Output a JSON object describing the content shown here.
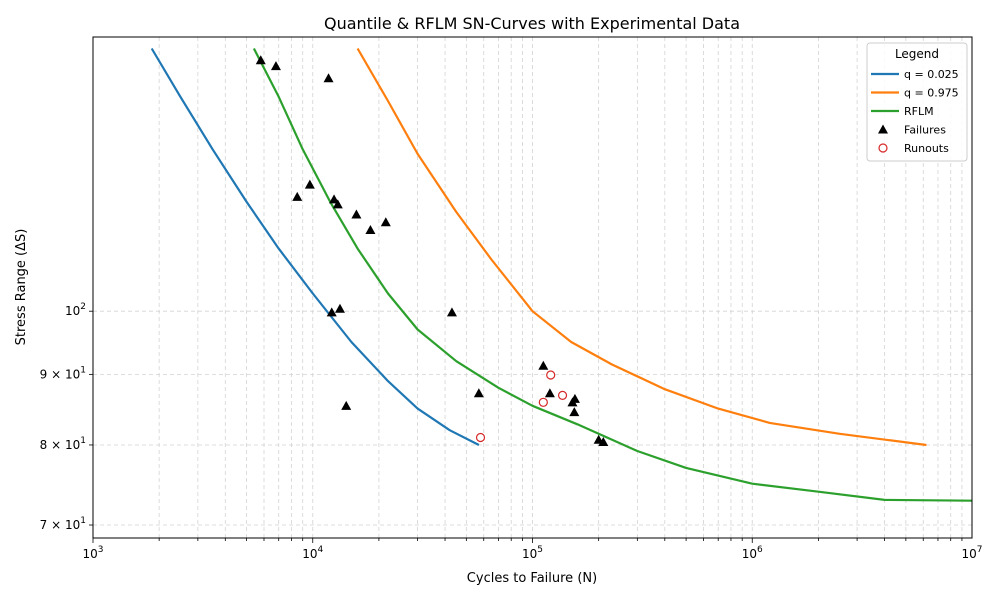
{
  "chart_data": {
    "type": "scatter",
    "title": "Quantile & RFLM SN-Curves with Experimental Data",
    "xlabel": "Cycles to Failure (N)",
    "ylabel": "Stress Range (ΔS)",
    "xscale": "log",
    "yscale": "log",
    "xlim": [
      1000,
      10000000
    ],
    "ylim": [
      68.5,
      158
    ],
    "grid": true,
    "legend_title": "Legend",
    "legend_position": "top-right",
    "x_ticks": [
      {
        "value": 1000,
        "base": "10",
        "exp": "3"
      },
      {
        "value": 10000,
        "base": "10",
        "exp": "4"
      },
      {
        "value": 100000,
        "base": "10",
        "exp": "5"
      },
      {
        "value": 1000000,
        "base": "10",
        "exp": "6"
      },
      {
        "value": 10000000,
        "base": "10",
        "exp": "7"
      }
    ],
    "y_ticks": [
      {
        "value": 70,
        "mant": "7 × 10",
        "exp": "1"
      },
      {
        "value": 80,
        "mant": "8 × 10",
        "exp": "1"
      },
      {
        "value": 90,
        "mant": "9 × 10",
        "exp": "1"
      },
      {
        "value": 100,
        "mant": "10",
        "exp": "2"
      }
    ],
    "series": [
      {
        "name": "q = 0.025",
        "kind": "line",
        "color": "#1f77b4",
        "points": [
          [
            1850,
            155
          ],
          [
            2500,
            143
          ],
          [
            3500,
            131
          ],
          [
            5000,
            120
          ],
          [
            7000,
            111
          ],
          [
            10000,
            103
          ],
          [
            15000,
            95
          ],
          [
            22000,
            89
          ],
          [
            30000,
            85
          ],
          [
            42000,
            82
          ],
          [
            57000,
            80
          ]
        ]
      },
      {
        "name": "q = 0.975",
        "kind": "line",
        "color": "#ff7f0e",
        "points": [
          [
            16000,
            155
          ],
          [
            22000,
            142
          ],
          [
            30000,
            130
          ],
          [
            45000,
            118
          ],
          [
            65000,
            109
          ],
          [
            100000,
            100
          ],
          [
            150000,
            95
          ],
          [
            230000,
            91.5
          ],
          [
            400000,
            87.8
          ],
          [
            700000,
            85
          ],
          [
            1200000,
            83
          ],
          [
            2500000,
            81.5
          ],
          [
            6200000,
            80
          ]
        ]
      },
      {
        "name": "RFLM",
        "kind": "line",
        "color": "#2ca02c",
        "points": [
          [
            5400,
            155
          ],
          [
            7000,
            143
          ],
          [
            9000,
            131
          ],
          [
            12000,
            120
          ],
          [
            16000,
            111
          ],
          [
            22000,
            103
          ],
          [
            30000,
            97
          ],
          [
            45000,
            92
          ],
          [
            70000,
            88
          ],
          [
            100000,
            85.4
          ],
          [
            160000,
            82.8
          ],
          [
            300000,
            79.2
          ],
          [
            500000,
            77
          ],
          [
            1000000,
            75
          ],
          [
            2000000,
            74
          ],
          [
            4000000,
            73
          ],
          [
            10000000,
            72.9
          ]
        ]
      },
      {
        "name": "Failures",
        "kind": "scatter",
        "marker": "triangle",
        "color": "#000000",
        "points": [
          [
            5800,
            152
          ],
          [
            6800,
            150.5
          ],
          [
            11800,
            147.5
          ],
          [
            8500,
            121
          ],
          [
            9700,
            123.5
          ],
          [
            12500,
            120.5
          ],
          [
            13000,
            119.5
          ],
          [
            15800,
            117.5
          ],
          [
            18300,
            114.5
          ],
          [
            21500,
            116
          ],
          [
            12200,
            99.8
          ],
          [
            13300,
            100.4
          ],
          [
            43000,
            99.8
          ],
          [
            14200,
            85.4
          ],
          [
            57000,
            87.2
          ],
          [
            112000,
            91.3
          ],
          [
            120000,
            87.2
          ],
          [
            152000,
            85.9
          ],
          [
            156000,
            86.4
          ],
          [
            155000,
            84.5
          ],
          [
            200000,
            80.7
          ],
          [
            210000,
            80.4
          ]
        ]
      },
      {
        "name": "Runouts",
        "kind": "scatter",
        "marker": "circle-open",
        "color": "#d62728",
        "points": [
          [
            58000,
            81
          ],
          [
            112000,
            85.9
          ],
          [
            121000,
            89.9
          ],
          [
            137000,
            86.9
          ]
        ]
      }
    ]
  }
}
